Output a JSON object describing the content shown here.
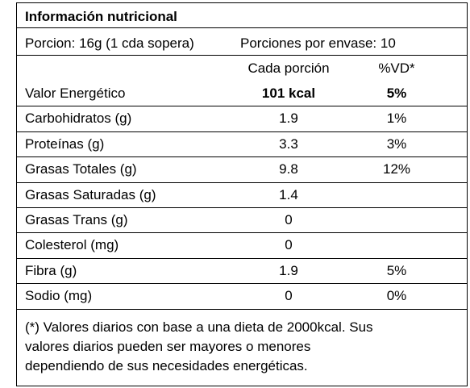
{
  "title": "Información nutricional",
  "serving": {
    "size": "Porcion: 16g (1 cda sopera)",
    "per_container": "Porciones por envase: 10"
  },
  "table": {
    "header": [
      "Cada porción",
      "%VD*"
    ],
    "rows": [
      [
        "Valor Energético",
        "101 kcal",
        "5%"
      ],
      [
        "Carbohidratos (g)",
        "1.9",
        "1%"
      ],
      [
        "Proteínas (g)",
        "3.3",
        "3%"
      ],
      [
        "Grasas Totales (g)",
        "9.8",
        "12%"
      ],
      [
        "Grasas Saturadas (g)",
        "1.4",
        null
      ],
      [
        "Grasas Trans (g)",
        "0",
        null
      ],
      [
        "Colesterol (mg)",
        "0",
        null
      ],
      [
        "Fibra (g)",
        "1.9",
        "5%"
      ],
      [
        "Sodio (mg)",
        "0",
        "0%"
      ]
    ]
  },
  "footnote": [
    "(*) Valores diarios con base a una dieta de 2000kcal. Sus",
    "valores diarios pueden ser mayores o menores",
    "dependiendo de sus necesidades energéticas."
  ]
}
